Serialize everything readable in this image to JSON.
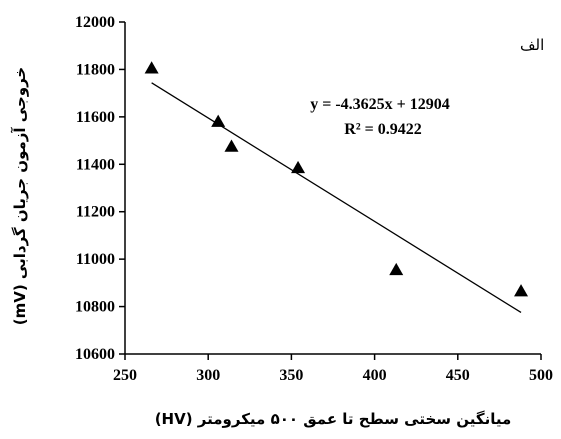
{
  "chart_data": {
    "type": "scatter",
    "panel_label": "الف",
    "xlabel": "میانگین سختی سطح تا عمق ۵۰۰ میکرومتر (HV)",
    "ylabel": "خروجی آزمون جریان گردابی (mV)",
    "xlim": [
      250,
      500
    ],
    "ylim": [
      10600,
      12000
    ],
    "x_ticks": [
      250,
      300,
      350,
      400,
      450,
      500
    ],
    "y_ticks": [
      10600,
      10800,
      11000,
      11200,
      11400,
      11600,
      11800,
      12000
    ],
    "marker": "triangle",
    "points": [
      {
        "x": 266,
        "y": 11805
      },
      {
        "x": 306,
        "y": 11580
      },
      {
        "x": 314,
        "y": 11475
      },
      {
        "x": 354,
        "y": 11385
      },
      {
        "x": 413,
        "y": 10955
      },
      {
        "x": 488,
        "y": 10865
      }
    ],
    "trendline": {
      "slope": -4.3625,
      "intercept": 12904,
      "x_range": [
        266,
        488
      ]
    },
    "equation_text": "y = -4.3625x + 12904",
    "r2_text": "R² = 0.9422",
    "grid": false,
    "legend": "none"
  }
}
